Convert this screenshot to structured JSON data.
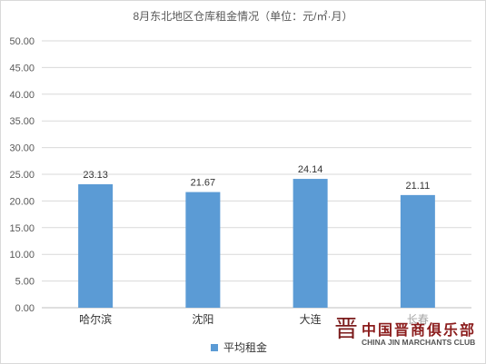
{
  "chart_data": {
    "type": "bar",
    "title": "8月东北地区仓库租金情况（单位：元/㎡·月）",
    "categories": [
      "哈尔滨",
      "沈阳",
      "大连",
      "长春"
    ],
    "series": [
      {
        "name": "平均租金",
        "values": [
          23.13,
          21.67,
          24.14,
          21.11
        ],
        "color": "#5b9bd5"
      }
    ],
    "ylim": [
      0,
      50
    ],
    "yticks": [
      "0.00",
      "5.00",
      "10.00",
      "15.00",
      "20.00",
      "25.00",
      "30.00",
      "35.00",
      "40.00",
      "45.00",
      "50.00"
    ],
    "grid": true,
    "legend": "bottom",
    "data_labels": [
      "23.13",
      "21.67",
      "24.14",
      "21.11"
    ]
  },
  "watermark": {
    "logo": "晋",
    "cn": "中国晋商俱乐部",
    "en": "CHINA JIN MARCHANTS CLUB"
  }
}
